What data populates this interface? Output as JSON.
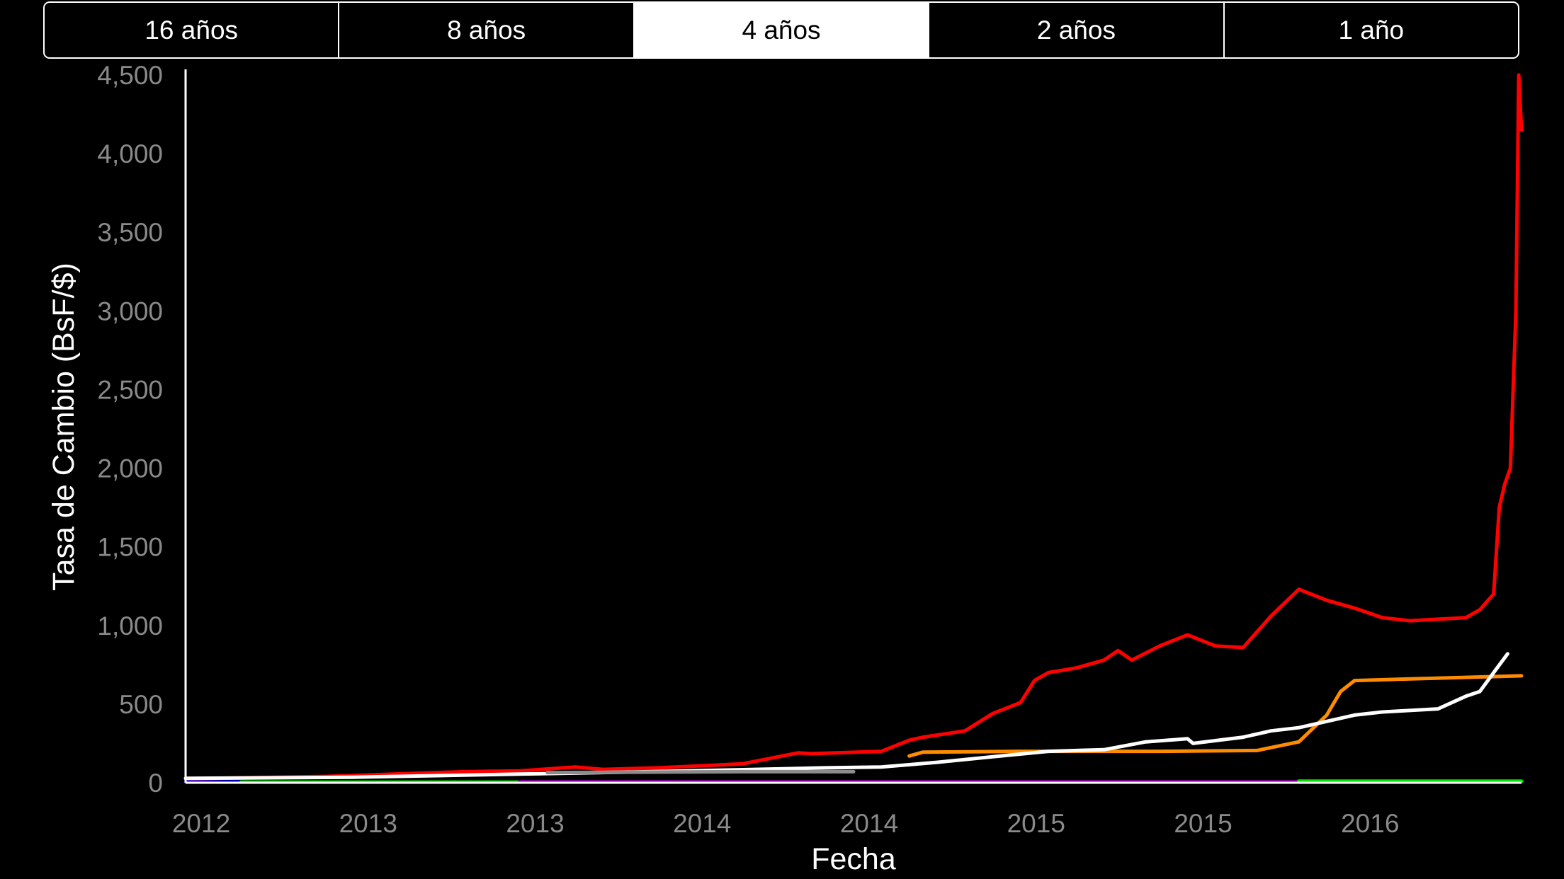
{
  "segments": [
    "16 años",
    "8 años",
    "4 años",
    "2 años",
    "1 año"
  ],
  "selected_segment": "4 años",
  "colors": {
    "background": "#000000",
    "foreground": "#ffffff",
    "tick_text": "#8a8a8a"
  },
  "chart_data": {
    "type": "line",
    "title": "",
    "xlabel": "Fecha",
    "ylabel": "Tasa de Cambio (BsF/$)",
    "xlim": [
      2012.0,
      2016.8
    ],
    "ylim": [
      0,
      4500
    ],
    "y_ticks": [
      0,
      500,
      1000,
      1500,
      2000,
      2500,
      3000,
      3500,
      4000,
      4500
    ],
    "y_tick_labels": [
      "0",
      "500",
      "1,000",
      "1,500",
      "2,000",
      "2,500",
      "3,000",
      "3,500",
      "4,000",
      "4,500"
    ],
    "x_ticks": [
      2012.0,
      2012.6,
      2013.2,
      2013.8,
      2014.4,
      2015.0,
      2015.6,
      2016.2
    ],
    "x_tick_labels": [
      "2012",
      "2013",
      "2013",
      "2014",
      "2014",
      "2015",
      "2015",
      "2016"
    ],
    "grid": false,
    "legend": "none",
    "series": [
      {
        "color": "#ff0000",
        "x": [
          2012.0,
          2012.5,
          2013.0,
          2013.2,
          2013.4,
          2013.5,
          2013.7,
          2014.0,
          2014.2,
          2014.25,
          2014.5,
          2014.6,
          2014.65,
          2014.8,
          2014.9,
          2015.0,
          2015.05,
          2015.1,
          2015.2,
          2015.3,
          2015.35,
          2015.4,
          2015.5,
          2015.6,
          2015.7,
          2015.8,
          2015.9,
          2016.0,
          2016.1,
          2016.2,
          2016.3,
          2016.4,
          2016.5,
          2016.6,
          2016.65,
          2016.7,
          2016.72,
          2016.74,
          2016.76,
          2016.78,
          2016.79,
          2016.8
        ],
        "y": [
          25,
          40,
          70,
          75,
          100,
          85,
          95,
          120,
          190,
          185,
          200,
          270,
          290,
          330,
          440,
          510,
          650,
          700,
          730,
          780,
          840,
          780,
          870,
          940,
          870,
          860,
          1060,
          1230,
          1160,
          1110,
          1050,
          1030,
          1040,
          1050,
          1100,
          1200,
          1750,
          1900,
          2000,
          3000,
          4500,
          4150
        ]
      },
      {
        "color": "#ff8c00",
        "x": [
          2014.6,
          2014.65,
          2015.0,
          2015.5,
          2015.85,
          2016.0,
          2016.1,
          2016.15,
          2016.2,
          2016.4,
          2016.6,
          2016.8
        ],
        "y": [
          170,
          195,
          200,
          200,
          205,
          260,
          430,
          580,
          650,
          660,
          670,
          680
        ]
      },
      {
        "color": "#ffffff",
        "x": [
          2012.0,
          2012.6,
          2013.2,
          2013.8,
          2014.3,
          2014.5,
          2014.7,
          2014.9,
          2015.1,
          2015.3,
          2015.45,
          2015.6,
          2015.62,
          2015.8,
          2015.9,
          2016.0,
          2016.2,
          2016.3,
          2016.5,
          2016.55,
          2016.6,
          2016.65,
          2016.7,
          2016.75
        ],
        "y": [
          28,
          35,
          55,
          75,
          95,
          100,
          130,
          165,
          200,
          210,
          260,
          280,
          250,
          290,
          330,
          350,
          430,
          450,
          470,
          510,
          550,
          580,
          700,
          820
        ]
      },
      {
        "color": "#8c8c8c",
        "x": [
          2013.3,
          2014.0,
          2014.4
        ],
        "y": [
          65,
          70,
          70
        ]
      },
      {
        "color": "#0000ff",
        "x": [
          2012.0,
          2012.25
        ],
        "y": [
          4.3,
          4.3
        ]
      },
      {
        "color": "#00c800",
        "x": [
          2012.2,
          2013.2
        ],
        "y": [
          4.3,
          4.3
        ]
      },
      {
        "color": "#8a00a0",
        "x": [
          2013.2,
          2016.0
        ],
        "y": [
          6.3,
          6.3
        ]
      },
      {
        "color": "#00e600",
        "x": [
          2016.0,
          2016.8
        ],
        "y": [
          10,
          10
        ]
      }
    ]
  }
}
